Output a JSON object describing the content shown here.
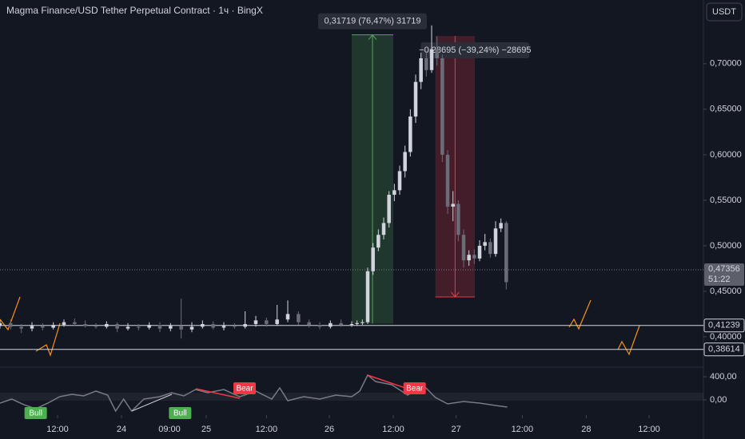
{
  "chart_data": {
    "type": "candlestick",
    "title": "Magma Finance/USD Tether Perpetual Contract · 1ч · BingX",
    "currency_button": "USDT",
    "up_color": "#d1d4dc",
    "down_color": "#6a6d78",
    "x": [
      0,
      2,
      4,
      6,
      8,
      10,
      12,
      14,
      16,
      18,
      20,
      22,
      24,
      26,
      28,
      30,
      32,
      34,
      36,
      38,
      40,
      42,
      44,
      46,
      48,
      50,
      52,
      54,
      56,
      58,
      60,
      62,
      64,
      66,
      67,
      68,
      69,
      70,
      71,
      72,
      73,
      74,
      75,
      76,
      77,
      78,
      79,
      80,
      81,
      82,
      83,
      84,
      85,
      86,
      87,
      88,
      89,
      90,
      91,
      92,
      93,
      94,
      95
    ],
    "open": [
      0.412,
      0.415,
      0.411,
      0.409,
      0.412,
      0.41,
      0.413,
      0.416,
      0.414,
      0.412,
      0.411,
      0.414,
      0.409,
      0.411,
      0.41,
      0.413,
      0.409,
      0.412,
      0.408,
      0.411,
      0.414,
      0.41,
      0.412,
      0.411,
      0.414,
      0.418,
      0.414,
      0.419,
      0.425,
      0.416,
      0.413,
      0.411,
      0.415,
      0.413,
      0.414,
      0.415,
      0.416,
      0.472,
      0.498,
      0.512,
      0.525,
      0.556,
      0.561,
      0.582,
      0.603,
      0.642,
      0.68,
      0.706,
      0.693,
      0.716,
      0.706,
      0.6,
      0.543,
      0.546,
      0.512,
      0.484,
      0.49,
      0.486,
      0.5,
      0.504,
      0.491,
      0.519,
      0.525
    ],
    "high": [
      0.418,
      0.419,
      0.414,
      0.416,
      0.415,
      0.416,
      0.419,
      0.42,
      0.418,
      0.415,
      0.417,
      0.416,
      0.415,
      0.414,
      0.416,
      0.416,
      0.415,
      0.442,
      0.416,
      0.418,
      0.417,
      0.416,
      0.415,
      0.428,
      0.423,
      0.421,
      0.435,
      0.44,
      0.428,
      0.419,
      0.416,
      0.418,
      0.419,
      0.417,
      0.418,
      0.419,
      0.476,
      0.503,
      0.518,
      0.531,
      0.56,
      0.568,
      0.588,
      0.61,
      0.65,
      0.688,
      0.712,
      0.714,
      0.742,
      0.73,
      0.71,
      0.605,
      0.56,
      0.55,
      0.518,
      0.495,
      0.496,
      0.506,
      0.513,
      0.508,
      0.527,
      0.53,
      0.527
    ],
    "low": [
      0.409,
      0.408,
      0.404,
      0.406,
      0.407,
      0.408,
      0.411,
      0.412,
      0.41,
      0.409,
      0.409,
      0.405,
      0.407,
      0.407,
      0.408,
      0.405,
      0.406,
      0.398,
      0.405,
      0.409,
      0.408,
      0.407,
      0.409,
      0.409,
      0.411,
      0.411,
      0.412,
      0.416,
      0.413,
      0.41,
      0.408,
      0.409,
      0.411,
      0.411,
      0.412,
      0.413,
      0.414,
      0.468,
      0.494,
      0.507,
      0.52,
      0.549,
      0.556,
      0.575,
      0.598,
      0.635,
      0.672,
      0.686,
      0.69,
      0.698,
      0.592,
      0.535,
      0.527,
      0.505,
      0.476,
      0.478,
      0.48,
      0.483,
      0.495,
      0.487,
      0.488,
      0.515,
      0.452
    ],
    "close": [
      0.415,
      0.411,
      0.409,
      0.412,
      0.41,
      0.413,
      0.416,
      0.414,
      0.412,
      0.411,
      0.414,
      0.409,
      0.411,
      0.41,
      0.413,
      0.409,
      0.412,
      0.408,
      0.411,
      0.414,
      0.41,
      0.412,
      0.411,
      0.414,
      0.418,
      0.414,
      0.419,
      0.425,
      0.416,
      0.413,
      0.411,
      0.415,
      0.413,
      0.414,
      0.415,
      0.416,
      0.472,
      0.498,
      0.512,
      0.525,
      0.556,
      0.561,
      0.582,
      0.603,
      0.642,
      0.68,
      0.706,
      0.693,
      0.716,
      0.706,
      0.6,
      0.543,
      0.546,
      0.512,
      0.484,
      0.49,
      0.486,
      0.5,
      0.504,
      0.491,
      0.519,
      0.525,
      0.46
    ],
    "xlim": [
      0,
      132
    ],
    "xticks": [
      {
        "value": 10.8,
        "label": "12:00"
      },
      {
        "value": 22.8,
        "label": "24"
      },
      {
        "value": 31.8,
        "label": "09:00"
      },
      {
        "value": 38.7,
        "label": "25"
      },
      {
        "value": 50,
        "label": "12:00"
      },
      {
        "value": 61.8,
        "label": "26"
      },
      {
        "value": 73.8,
        "label": "12:00"
      },
      {
        "value": 85.6,
        "label": "27"
      },
      {
        "value": 98,
        "label": "12:00"
      },
      {
        "value": 110,
        "label": "28"
      },
      {
        "value": 121.8,
        "label": "12:00"
      }
    ],
    "ylim": [
      0.371,
      0.77
    ],
    "yticks": [
      {
        "value": 0.45,
        "label": "0,45000"
      },
      {
        "value": 0.5,
        "label": "0,50000"
      },
      {
        "value": 0.55,
        "label": "0,55000"
      },
      {
        "value": 0.6,
        "label": "0,60000"
      },
      {
        "value": 0.65,
        "label": "0,65000"
      },
      {
        "value": 0.7,
        "label": "0,70000"
      },
      {
        "value": 0.4,
        "label": "0,40000"
      }
    ],
    "current_price": {
      "value": 0.47356,
      "label": "0,47356",
      "countdown": "51:22"
    },
    "hlines": [
      {
        "value": 0.41239,
        "label": "0,41239"
      },
      {
        "value": 0.38614,
        "label": "0,38614"
      }
    ],
    "measures": [
      {
        "x": [
          66,
          73.8
        ],
        "from": 0.4145,
        "to": 0.7317,
        "label": "0,31719 (76,47%) 31719",
        "color": "#4caf50"
      },
      {
        "x": [
          81.7,
          89.1
        ],
        "from": 0.7305,
        "to": 0.4438,
        "label": "−0,28695 (−39,24%) −28695",
        "color": "#f23645"
      }
    ],
    "oscillator": {
      "x": [
        0,
        2.2,
        4.5,
        6.7,
        9,
        11.2,
        13.5,
        15.7,
        18,
        20.2,
        21.7,
        23.2,
        24.7,
        27,
        30,
        32.2,
        34.5,
        36.7,
        39,
        42,
        45,
        48,
        51,
        52.5,
        54,
        57,
        60,
        63,
        66,
        67.5,
        69,
        70.5,
        73.5,
        76.5,
        79.5,
        81.7,
        84,
        87,
        90,
        93,
        95.2
      ],
      "values": [
        -55,
        14,
        -83,
        -152,
        -55,
        55,
        97,
        69,
        152,
        83,
        -193,
        14,
        -193,
        14,
        55,
        124,
        69,
        179,
        124,
        179,
        55,
        152,
        14,
        207,
        -14,
        55,
        14,
        83,
        55,
        152,
        428,
        317,
        262,
        83,
        248,
        41,
        -69,
        -28,
        -55,
        -97,
        -124
      ],
      "color": "#787b86",
      "ylim": [
        -262,
        538
      ],
      "yticks": [
        {
          "value": 400,
          "label": "400,00"
        },
        {
          "value": 0,
          "label": "0,00"
        }
      ],
      "signals": [
        {
          "x": 6.7,
          "label": "Bull",
          "color": "#4caf50"
        },
        {
          "x": 33.8,
          "label": "Bull",
          "color": "#4caf50"
        },
        {
          "x": 45.9,
          "label": "Bear",
          "color": "#f23645"
        },
        {
          "x": 77.8,
          "label": "Bear",
          "color": "#f23645"
        }
      ]
    }
  }
}
